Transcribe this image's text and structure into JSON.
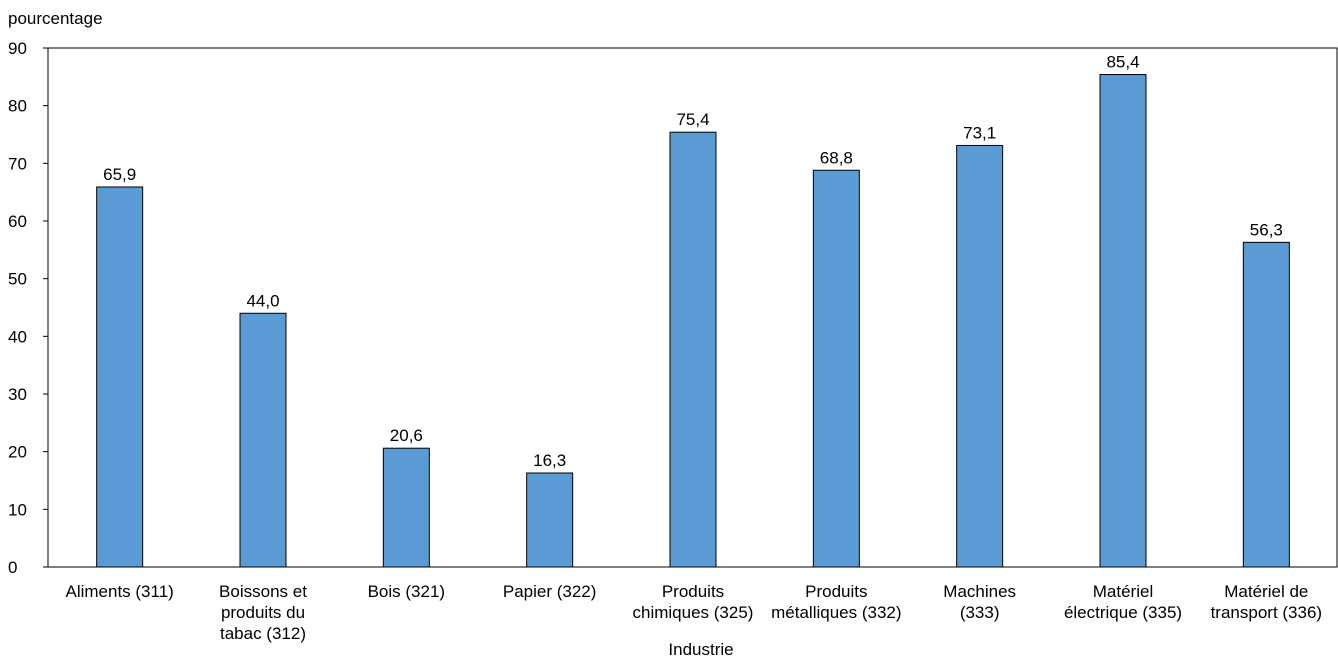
{
  "chart_data": {
    "type": "bar",
    "title": "",
    "ylabel": "pourcentage",
    "xlabel": "Industrie",
    "ylim": [
      0,
      90
    ],
    "yticks": [
      0,
      10,
      20,
      30,
      40,
      50,
      60,
      70,
      80,
      90
    ],
    "grid": false,
    "legend": "none",
    "bar_color": "#5b9bd5",
    "bar_edge_color": "#000000",
    "categories": [
      [
        "Aliments (311)"
      ],
      [
        "Boissons et",
        "produits du",
        "tabac (312)"
      ],
      [
        "Bois (321)"
      ],
      [
        "Papier (322)"
      ],
      [
        "Produits",
        "chimiques (325)"
      ],
      [
        "Produits",
        "métalliques (332)"
      ],
      [
        "Machines",
        "(333)"
      ],
      [
        "Matériel",
        "électrique (335)"
      ],
      [
        "Matériel de",
        "transport (336)"
      ]
    ],
    "values": [
      65.9,
      44.0,
      20.6,
      16.3,
      75.4,
      68.8,
      73.1,
      85.4,
      56.3
    ],
    "value_labels": [
      "65,9",
      "44,0",
      "20,6",
      "16,3",
      "75,4",
      "68,8",
      "73,1",
      "85,4",
      "56,3"
    ]
  }
}
